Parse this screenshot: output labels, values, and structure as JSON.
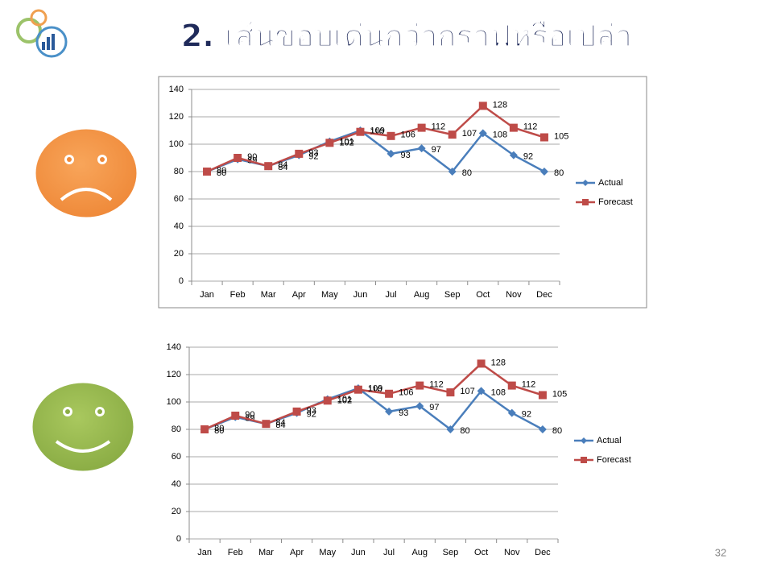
{
  "slide": {
    "title": "2. เส้นขอบเด่นกว่ากราฟหรือเปล่า",
    "page_number": "32"
  },
  "chart_data": [
    {
      "type": "line",
      "border": true,
      "grid": true,
      "legend": "right",
      "categories": [
        "Jan",
        "Feb",
        "Mar",
        "Apr",
        "May",
        "Jun",
        "Jul",
        "Aug",
        "Sep",
        "Oct",
        "Nov",
        "Dec"
      ],
      "ylim": [
        0,
        140
      ],
      "yticks": [
        0,
        20,
        40,
        60,
        80,
        100,
        120,
        140
      ],
      "series": [
        {
          "name": "Actual",
          "color": "#4a7ebb",
          "marker": "diamond",
          "values": [
            80,
            89,
            84,
            92,
            102,
            110,
            93,
            97,
            80,
            108,
            92,
            80
          ]
        },
        {
          "name": "Forecast",
          "color": "#be4b48",
          "marker": "square",
          "values": [
            80,
            90,
            84,
            93,
            101,
            109,
            106,
            112,
            107,
            128,
            112,
            105
          ]
        }
      ]
    },
    {
      "type": "line",
      "border": false,
      "grid": true,
      "legend": "right",
      "categories": [
        "Jan",
        "Feb",
        "Mar",
        "Apr",
        "May",
        "Jun",
        "Jul",
        "Aug",
        "Sep",
        "Oct",
        "Nov",
        "Dec"
      ],
      "ylim": [
        0,
        140
      ],
      "yticks": [
        0,
        20,
        40,
        60,
        80,
        100,
        120,
        140
      ],
      "series": [
        {
          "name": "Actual",
          "color": "#4a7ebb",
          "marker": "diamond",
          "values": [
            80,
            89,
            84,
            92,
            102,
            110,
            93,
            97,
            80,
            108,
            92,
            80
          ]
        },
        {
          "name": "Forecast",
          "color": "#be4b48",
          "marker": "square",
          "values": [
            80,
            90,
            84,
            93,
            101,
            109,
            106,
            112,
            107,
            128,
            112,
            105
          ]
        }
      ]
    }
  ]
}
